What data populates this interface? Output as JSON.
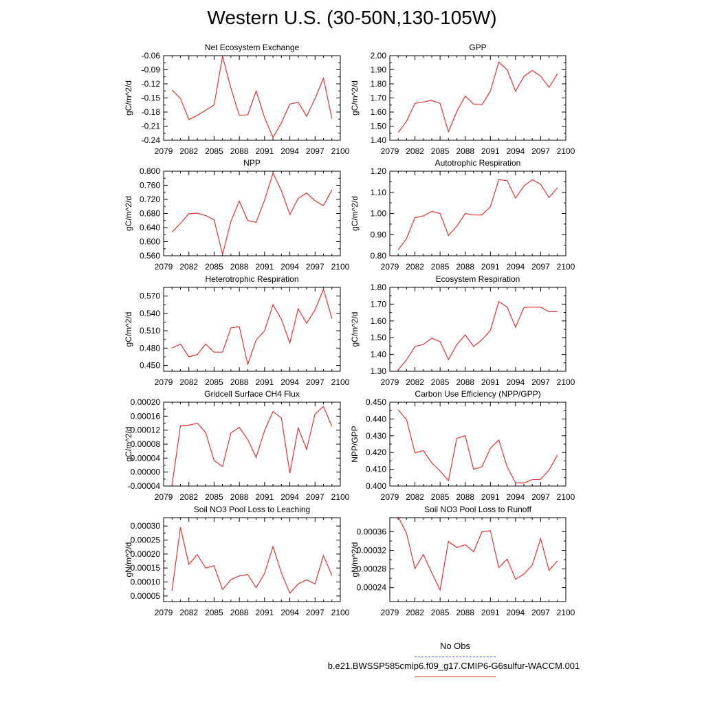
{
  "title": "Western U.S. (30-50N,130-105W)",
  "legend": {
    "obs_label": "No Obs",
    "obs_color": "#4a4aff",
    "model_label": "b.e21.BWSSP585cmip6.f09_g17.CMIP6-G6sulfur-WACCM.001",
    "model_color": "#e03030"
  },
  "chart_data": [
    {
      "type": "line",
      "title": "Net Ecosystem Exchange",
      "ylabel": "gC/m^2/d",
      "xlim": [
        2079,
        2100
      ],
      "xticks": [
        "2079",
        "2082",
        "2085",
        "2088",
        "2091",
        "2094",
        "2097",
        "2100"
      ],
      "ylim": [
        -0.24,
        -0.06
      ],
      "yticks": [
        "-0.24",
        "-0.21",
        "-0.18",
        "-0.15",
        "-0.12",
        "-0.09",
        "-0.06"
      ],
      "x": [
        2080,
        2081,
        2082,
        2083,
        2084,
        2085,
        2086,
        2087,
        2088,
        2089,
        2090,
        2091,
        2092,
        2093,
        2094,
        2095,
        2096,
        2097,
        2098,
        2099
      ],
      "values": [
        -0.133,
        -0.151,
        -0.196,
        -0.187,
        -0.176,
        -0.165,
        -0.061,
        -0.129,
        -0.187,
        -0.186,
        -0.135,
        -0.192,
        -0.234,
        -0.203,
        -0.163,
        -0.159,
        -0.189,
        -0.151,
        -0.108,
        -0.194
      ]
    },
    {
      "type": "line",
      "title": "GPP",
      "ylabel": "gC/m^2/d",
      "xlim": [
        2079,
        2100
      ],
      "xticks": [
        "2079",
        "2082",
        "2085",
        "2088",
        "2091",
        "2094",
        "2097",
        "2100"
      ],
      "ylim": [
        1.4,
        2.0
      ],
      "yticks": [
        "1.40",
        "1.50",
        "1.60",
        "1.70",
        "1.80",
        "1.90",
        "2.00"
      ],
      "x": [
        2080,
        2081,
        2082,
        2083,
        2084,
        2085,
        2086,
        2087,
        2088,
        2089,
        2090,
        2091,
        2092,
        2093,
        2094,
        2095,
        2096,
        2097,
        2098,
        2099
      ],
      "values": [
        1.455,
        1.535,
        1.662,
        1.672,
        1.683,
        1.662,
        1.46,
        1.605,
        1.713,
        1.657,
        1.652,
        1.748,
        1.955,
        1.9,
        1.748,
        1.852,
        1.895,
        1.855,
        1.775,
        1.87
      ]
    },
    {
      "type": "line",
      "title": "NPP",
      "ylabel": "gC/m^2/d",
      "xlim": [
        2079,
        2100
      ],
      "xticks": [
        "2079",
        "2082",
        "2085",
        "2088",
        "2091",
        "2094",
        "2097",
        "2100"
      ],
      "ylim": [
        0.56,
        0.8
      ],
      "yticks": [
        "0.560",
        "0.600",
        "0.640",
        "0.680",
        "0.720",
        "0.760",
        "0.800"
      ],
      "x": [
        2080,
        2081,
        2082,
        2083,
        2084,
        2085,
        2086,
        2087,
        2088,
        2089,
        2090,
        2091,
        2092,
        2093,
        2094,
        2095,
        2096,
        2097,
        2098,
        2099
      ],
      "values": [
        0.627,
        0.652,
        0.679,
        0.681,
        0.674,
        0.662,
        0.564,
        0.658,
        0.715,
        0.66,
        0.655,
        0.718,
        0.795,
        0.745,
        0.677,
        0.723,
        0.738,
        0.716,
        0.702,
        0.747
      ]
    },
    {
      "type": "line",
      "title": "Autotrophic Respiration",
      "ylabel": "gC/m^2/d",
      "xlim": [
        2079,
        2100
      ],
      "xticks": [
        "2079",
        "2082",
        "2085",
        "2088",
        "2091",
        "2094",
        "2097",
        "2100"
      ],
      "ylim": [
        0.8,
        1.2
      ],
      "yticks": [
        "0.80",
        "0.90",
        "1.00",
        "1.10",
        "1.20"
      ],
      "x": [
        2080,
        2081,
        2082,
        2083,
        2084,
        2085,
        2086,
        2087,
        2088,
        2089,
        2090,
        2091,
        2092,
        2093,
        2094,
        2095,
        2096,
        2097,
        2098,
        2099
      ],
      "values": [
        0.828,
        0.882,
        0.98,
        0.988,
        1.01,
        1.0,
        0.896,
        0.94,
        1.0,
        0.993,
        0.993,
        1.032,
        1.16,
        1.155,
        1.073,
        1.13,
        1.16,
        1.138,
        1.075,
        1.122
      ]
    },
    {
      "type": "line",
      "title": "Heterotrophic Respiration",
      "ylabel": "gC/m^2/d",
      "xlim": [
        2079,
        2100
      ],
      "xticks": [
        "2079",
        "2082",
        "2085",
        "2088",
        "2091",
        "2094",
        "2097",
        "2100"
      ],
      "ylim": [
        0.44,
        0.585
      ],
      "yticks": [
        "0.450",
        "0.480",
        "0.510",
        "0.540",
        "0.570"
      ],
      "x": [
        2080,
        2081,
        2082,
        2083,
        2084,
        2085,
        2086,
        2087,
        2088,
        2089,
        2090,
        2091,
        2092,
        2093,
        2094,
        2095,
        2096,
        2097,
        2098,
        2099
      ],
      "values": [
        0.48,
        0.487,
        0.465,
        0.469,
        0.487,
        0.473,
        0.473,
        0.515,
        0.517,
        0.452,
        0.494,
        0.51,
        0.555,
        0.53,
        0.489,
        0.548,
        0.523,
        0.546,
        0.582,
        0.531
      ]
    },
    {
      "type": "line",
      "title": "Ecosystem Respiration",
      "ylabel": "gC/m^2/d",
      "xlim": [
        2079,
        2100
      ],
      "xticks": [
        "2079",
        "2082",
        "2085",
        "2088",
        "2091",
        "2094",
        "2097",
        "2100"
      ],
      "ylim": [
        1.3,
        1.8
      ],
      "yticks": [
        "1.30",
        "1.40",
        "1.50",
        "1.60",
        "1.70",
        "1.80"
      ],
      "x": [
        2080,
        2081,
        2082,
        2083,
        2084,
        2085,
        2086,
        2087,
        2088,
        2089,
        2090,
        2091,
        2092,
        2093,
        2094,
        2095,
        2096,
        2097,
        2098,
        2099
      ],
      "values": [
        1.308,
        1.368,
        1.447,
        1.46,
        1.497,
        1.477,
        1.37,
        1.458,
        1.517,
        1.448,
        1.488,
        1.543,
        1.715,
        1.683,
        1.562,
        1.68,
        1.682,
        1.682,
        1.655,
        1.655
      ]
    },
    {
      "type": "line",
      "title": "Gridcell Surface CH4 Flux",
      "ylabel": "gC/m^2/d",
      "xlim": [
        2079,
        2100
      ],
      "xticks": [
        "2079",
        "2082",
        "2085",
        "2088",
        "2091",
        "2094",
        "2097",
        "2100"
      ],
      "ylim": [
        -4e-05,
        0.0002
      ],
      "yticks": [
        "-0.00004",
        "0.00000",
        "0.00004",
        "0.00008",
        "0.00012",
        "0.00016",
        "0.00020"
      ],
      "x": [
        2080,
        2081,
        2082,
        2083,
        2084,
        2085,
        2086,
        2087,
        2088,
        2089,
        2090,
        2091,
        2092,
        2093,
        2094,
        2095,
        2096,
        2097,
        2098,
        2099
      ],
      "values": [
        -3.8e-05,
        0.000132,
        0.000134,
        0.00014,
        0.000113,
        3.3e-05,
        1.6e-05,
        0.000112,
        0.000128,
        9.3e-05,
        4.2e-05,
        0.000119,
        0.000173,
        0.000155,
        -3e-06,
        0.000126,
        6.5e-05,
        0.000166,
        0.000188,
        0.000131
      ]
    },
    {
      "type": "line",
      "title": "Carbon Use Efficiency (NPP/GPP)",
      "ylabel": "NPP/GPP",
      "xlim": [
        2079,
        2100
      ],
      "xticks": [
        "2079",
        "2082",
        "2085",
        "2088",
        "2091",
        "2094",
        "2097",
        "2100"
      ],
      "ylim": [
        0.4,
        0.45
      ],
      "yticks": [
        "0.400",
        "0.410",
        "0.420",
        "0.430",
        "0.440",
        "0.450"
      ],
      "x": [
        2080,
        2081,
        2082,
        2083,
        2084,
        2085,
        2086,
        2087,
        2088,
        2089,
        2090,
        2091,
        2092,
        2093,
        2094,
        2095,
        2096,
        2097,
        2098,
        2099
      ],
      "values": [
        0.4455,
        0.4395,
        0.4198,
        0.4212,
        0.4138,
        0.409,
        0.4032,
        0.4285,
        0.43,
        0.41,
        0.4115,
        0.4225,
        0.4275,
        0.4115,
        0.402,
        0.4018,
        0.4038,
        0.404,
        0.4095,
        0.4185
      ]
    },
    {
      "type": "line",
      "title": "Soil NO3 Pool Loss to Leaching",
      "ylabel": "gN/m^2/d",
      "xlim": [
        2079,
        2100
      ],
      "xticks": [
        "2079",
        "2082",
        "2085",
        "2088",
        "2091",
        "2094",
        "2097",
        "2100"
      ],
      "ylim": [
        3e-05,
        0.00033
      ],
      "yticks": [
        "0.00005",
        "0.00010",
        "0.00015",
        "0.00020",
        "0.00025",
        "0.00030"
      ],
      "x": [
        2080,
        2081,
        2082,
        2083,
        2084,
        2085,
        2086,
        2087,
        2088,
        2089,
        2090,
        2091,
        2092,
        2093,
        2094,
        2095,
        2096,
        2097,
        2098,
        2099
      ],
      "values": [
        6.8e-05,
        0.000296,
        0.000163,
        0.000198,
        0.00015,
        0.000158,
        7.3e-05,
        0.000108,
        0.000122,
        0.000127,
        8e-05,
        0.000131,
        0.000227,
        0.000133,
        6e-05,
        9.3e-05,
        0.000108,
        9.3e-05,
        0.000195,
        0.000123
      ]
    },
    {
      "type": "line",
      "title": "Soil NO3 Pool Loss to Runoff",
      "ylabel": "gN/m^2/d",
      "xlim": [
        2079,
        2100
      ],
      "xticks": [
        "2079",
        "2082",
        "2085",
        "2088",
        "2091",
        "2094",
        "2097",
        "2100"
      ],
      "ylim": [
        0.00021,
        0.00039
      ],
      "yticks": [
        "0.00024",
        "0.00028",
        "0.00032",
        "0.00036"
      ],
      "x": [
        2080,
        2081,
        2082,
        2083,
        2084,
        2085,
        2086,
        2087,
        2088,
        2089,
        2090,
        2091,
        2092,
        2093,
        2094,
        2095,
        2096,
        2097,
        2098,
        2099
      ],
      "values": [
        0.000392,
        0.000356,
        0.000281,
        0.000311,
        0.000272,
        0.000235,
        0.000339,
        0.000326,
        0.000332,
        0.000317,
        0.00036,
        0.000362,
        0.000283,
        0.000301,
        0.000258,
        0.000269,
        0.000288,
        0.000345,
        0.000277,
        0.000297
      ]
    }
  ]
}
